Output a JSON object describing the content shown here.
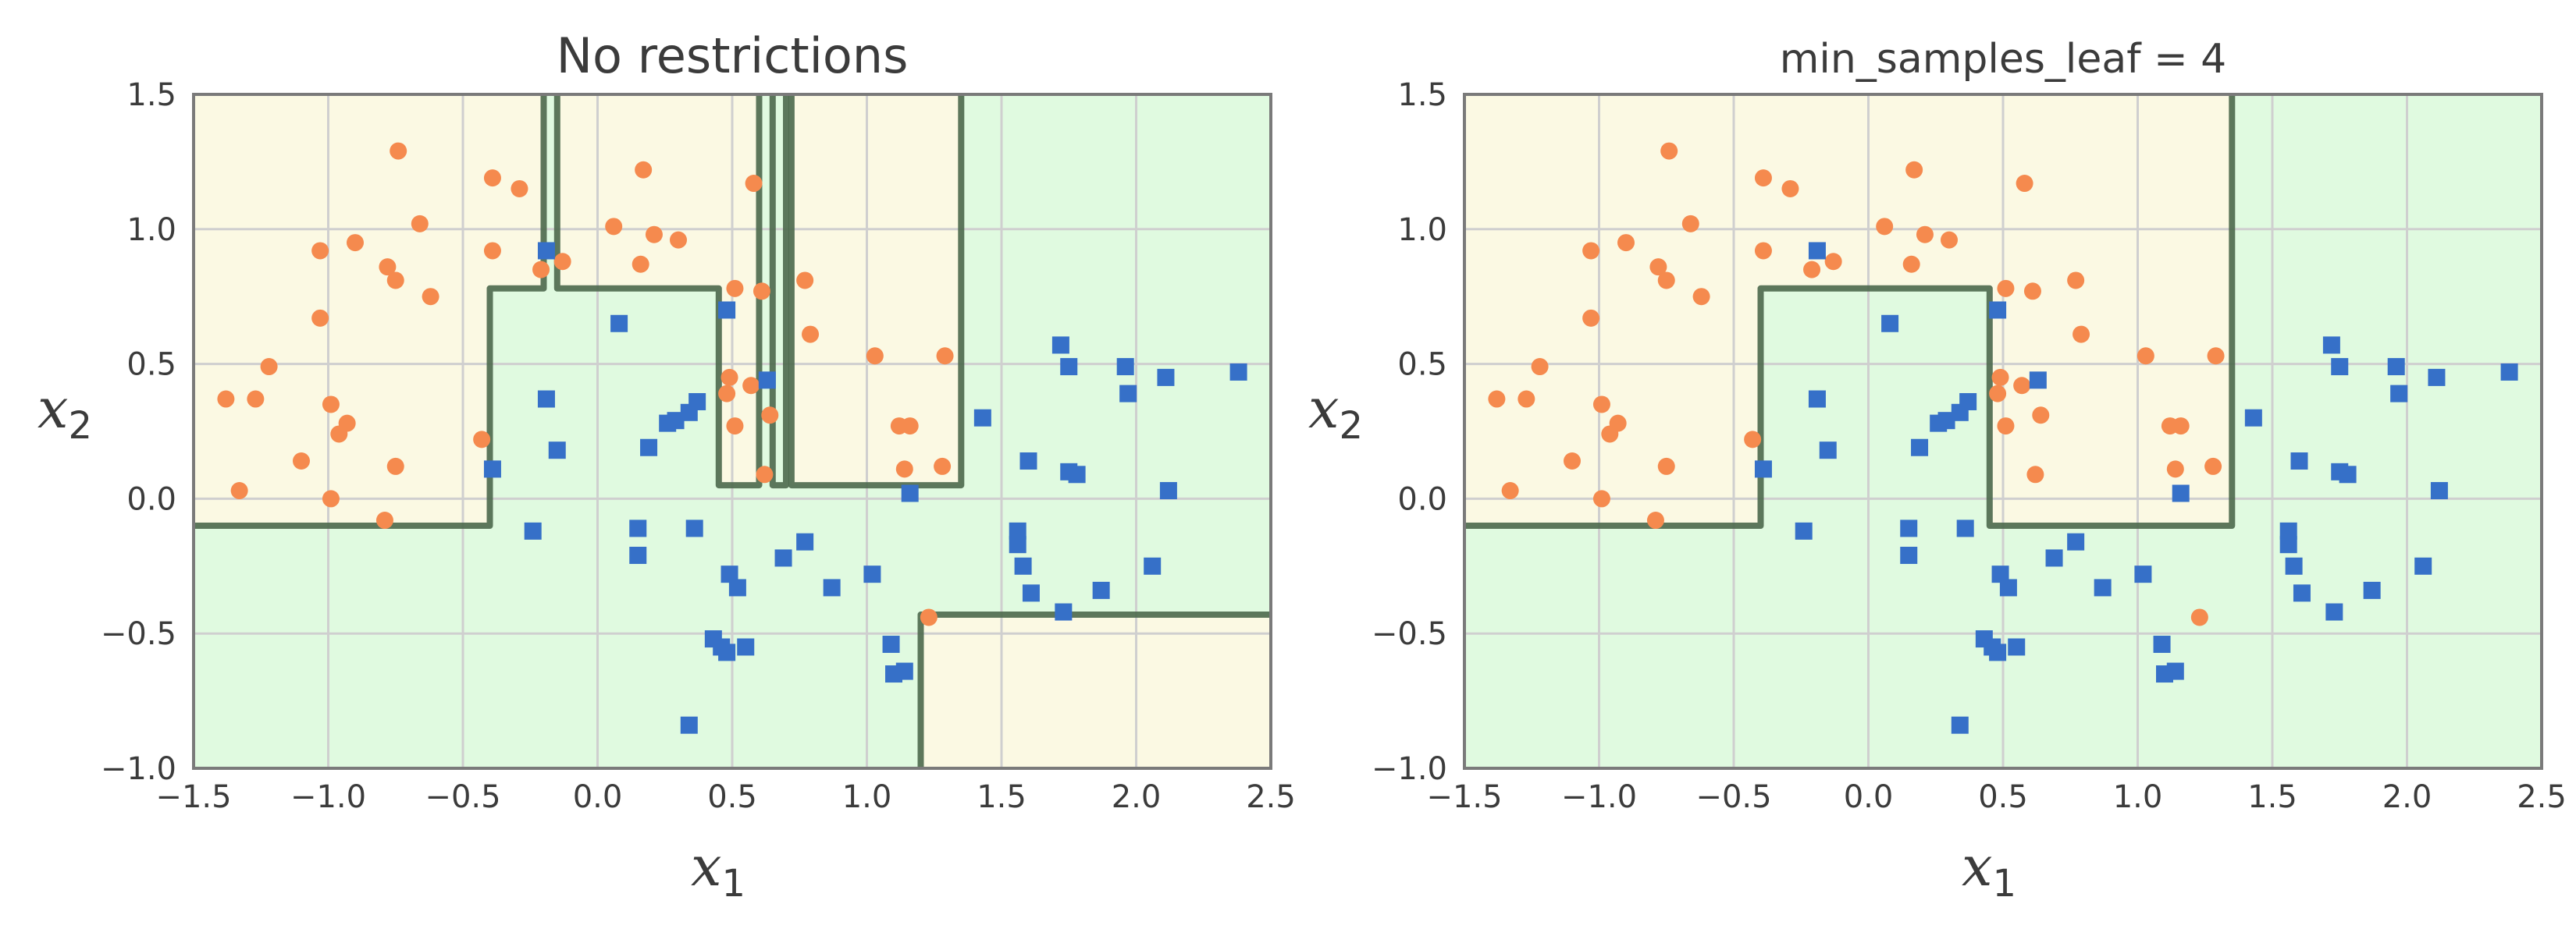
{
  "colors": {
    "class0_region": "#fbf9e3",
    "class1_region": "#e0fae0",
    "class0_marker": "#f58a4e",
    "class1_marker": "#3670c8",
    "boundary": "#4f6b4f",
    "grid": "#cfcfcf",
    "frame": "#7a7a7a",
    "text": "#3b3b3b"
  },
  "chart_data": [
    {
      "type": "scatter",
      "title": "No restrictions",
      "xlabel": "x",
      "xlabel_sub": "1",
      "ylabel": "x",
      "ylabel_sub": "2",
      "xlim": [
        -1.5,
        2.5
      ],
      "ylim": [
        -1.0,
        1.5
      ],
      "xticks": [
        "−1.5",
        "−1.0",
        "−0.5",
        "0.0",
        "0.5",
        "1.0",
        "1.5",
        "2.0",
        "2.5"
      ],
      "yticks": [
        "−1.0",
        "−0.5",
        "0.0",
        "0.5",
        "1.0",
        "1.5"
      ],
      "grid": true,
      "marker_class0": "circle",
      "marker_class1": "square",
      "class0_regions": [
        [
          [
            -1.5,
            -0.1
          ],
          [
            -0.4,
            -0.1
          ],
          [
            -0.4,
            0.78
          ],
          [
            -0.2,
            0.78
          ],
          [
            -0.2,
            1.5
          ],
          [
            -1.5,
            1.5
          ]
        ],
        [
          [
            -0.15,
            0.78
          ],
          [
            0.45,
            0.78
          ],
          [
            0.45,
            0.05
          ],
          [
            0.6,
            0.05
          ],
          [
            0.6,
            1.5
          ],
          [
            -0.15,
            1.5
          ]
        ],
        [
          [
            0.72,
            0.05
          ],
          [
            1.35,
            0.05
          ],
          [
            1.35,
            1.5
          ],
          [
            0.72,
            1.5
          ]
        ],
        [
          [
            1.2,
            -1.0
          ],
          [
            1.2,
            -0.43
          ],
          [
            2.5,
            -0.43
          ],
          [
            2.5,
            -1.0
          ]
        ]
      ],
      "boundaries": [
        [
          [
            -1.5,
            -0.1
          ],
          [
            -0.4,
            -0.1
          ],
          [
            -0.4,
            0.78
          ],
          [
            -0.2,
            0.78
          ],
          [
            -0.2,
            1.5
          ]
        ],
        [
          [
            -0.15,
            1.5
          ],
          [
            -0.15,
            0.78
          ],
          [
            0.45,
            0.78
          ],
          [
            0.45,
            0.05
          ],
          [
            0.6,
            0.05
          ],
          [
            0.6,
            1.5
          ]
        ],
        [
          [
            0.65,
            1.5
          ],
          [
            0.65,
            0.05
          ],
          [
            0.7,
            0.05
          ],
          [
            0.7,
            1.5
          ]
        ],
        [
          [
            0.72,
            1.5
          ],
          [
            0.72,
            0.05
          ],
          [
            1.35,
            0.05
          ],
          [
            1.35,
            1.5
          ]
        ],
        [
          [
            1.2,
            -1.0
          ],
          [
            1.2,
            -0.43
          ],
          [
            2.5,
            -0.43
          ]
        ]
      ],
      "series": [
        {
          "class": 0,
          "points": [
            [
              -1.38,
              0.37
            ],
            [
              -1.33,
              0.03
            ],
            [
              -1.27,
              0.37
            ],
            [
              -1.22,
              0.49
            ],
            [
              -1.1,
              0.14
            ],
            [
              -1.03,
              0.67
            ],
            [
              -1.03,
              0.92
            ],
            [
              -0.99,
              0.35
            ],
            [
              -0.99,
              0.0
            ],
            [
              -0.96,
              0.24
            ],
            [
              -0.93,
              0.28
            ],
            [
              -0.9,
              0.95
            ],
            [
              -0.79,
              -0.08
            ],
            [
              -0.78,
              0.86
            ],
            [
              -0.75,
              0.81
            ],
            [
              -0.75,
              0.12
            ],
            [
              -0.74,
              1.29
            ],
            [
              -0.66,
              1.02
            ],
            [
              -0.62,
              0.75
            ],
            [
              -0.43,
              0.22
            ],
            [
              -0.39,
              1.19
            ],
            [
              -0.39,
              0.92
            ],
            [
              -0.29,
              1.15
            ],
            [
              -0.21,
              0.85
            ],
            [
              -0.13,
              0.88
            ],
            [
              0.06,
              1.01
            ],
            [
              0.16,
              0.87
            ],
            [
              0.17,
              1.22
            ],
            [
              0.21,
              0.98
            ],
            [
              0.3,
              0.96
            ],
            [
              0.48,
              0.39
            ],
            [
              0.49,
              0.45
            ],
            [
              0.51,
              0.78
            ],
            [
              0.51,
              0.27
            ],
            [
              0.57,
              0.42
            ],
            [
              0.58,
              1.17
            ],
            [
              0.61,
              0.77
            ],
            [
              0.62,
              0.09
            ],
            [
              0.64,
              0.31
            ],
            [
              0.77,
              0.81
            ],
            [
              0.79,
              0.61
            ],
            [
              1.03,
              0.53
            ],
            [
              1.12,
              0.27
            ],
            [
              1.14,
              0.11
            ],
            [
              1.16,
              0.27
            ],
            [
              1.23,
              -0.44
            ],
            [
              1.29,
              0.53
            ],
            [
              1.28,
              0.12
            ]
          ]
        },
        {
          "class": 1,
          "points": [
            [
              -0.39,
              0.11
            ],
            [
              -0.24,
              -0.12
            ],
            [
              -0.19,
              0.92
            ],
            [
              -0.19,
              0.37
            ],
            [
              -0.15,
              0.18
            ],
            [
              0.08,
              0.65
            ],
            [
              0.15,
              -0.11
            ],
            [
              0.15,
              -0.21
            ],
            [
              0.19,
              0.19
            ],
            [
              0.26,
              0.28
            ],
            [
              0.29,
              0.29
            ],
            [
              0.34,
              0.32
            ],
            [
              0.37,
              0.36
            ],
            [
              0.36,
              -0.11
            ],
            [
              0.34,
              -0.84
            ],
            [
              0.43,
              -0.52
            ],
            [
              0.46,
              -0.55
            ],
            [
              0.48,
              -0.57
            ],
            [
              0.48,
              0.7
            ],
            [
              0.49,
              -0.28
            ],
            [
              0.52,
              -0.33
            ],
            [
              0.55,
              -0.55
            ],
            [
              0.63,
              0.44
            ],
            [
              0.69,
              -0.22
            ],
            [
              0.77,
              -0.16
            ],
            [
              0.87,
              -0.33
            ],
            [
              1.02,
              -0.28
            ],
            [
              1.09,
              -0.54
            ],
            [
              1.1,
              -0.65
            ],
            [
              1.14,
              -0.64
            ],
            [
              1.16,
              0.02
            ],
            [
              1.43,
              0.3
            ],
            [
              1.56,
              -0.12
            ],
            [
              1.56,
              -0.17
            ],
            [
              1.58,
              -0.25
            ],
            [
              1.61,
              -0.35
            ],
            [
              1.6,
              0.14
            ],
            [
              1.72,
              0.57
            ],
            [
              1.75,
              0.49
            ],
            [
              1.75,
              0.1
            ],
            [
              1.78,
              0.09
            ],
            [
              1.73,
              -0.42
            ],
            [
              1.87,
              -0.34
            ],
            [
              1.96,
              0.49
            ],
            [
              1.97,
              0.39
            ],
            [
              2.06,
              -0.25
            ],
            [
              2.11,
              0.45
            ],
            [
              2.12,
              0.03
            ],
            [
              2.38,
              0.47
            ]
          ]
        }
      ]
    },
    {
      "type": "scatter",
      "title": "min_samples_leaf = 4",
      "xlabel": "x",
      "xlabel_sub": "1",
      "ylabel": "x",
      "ylabel_sub": "2",
      "xlim": [
        -1.5,
        2.5
      ],
      "ylim": [
        -1.0,
        1.5
      ],
      "xticks": [
        "−1.5",
        "−1.0",
        "−0.5",
        "0.0",
        "0.5",
        "1.0",
        "1.5",
        "2.0",
        "2.5"
      ],
      "yticks": [
        "−1.0",
        "−0.5",
        "0.0",
        "0.5",
        "1.0",
        "1.5"
      ],
      "grid": true,
      "marker_class0": "circle",
      "marker_class1": "square",
      "class0_regions": [
        [
          [
            -1.5,
            -0.1
          ],
          [
            -0.4,
            -0.1
          ],
          [
            -0.4,
            0.78
          ],
          [
            0.45,
            0.78
          ],
          [
            0.45,
            -0.1
          ],
          [
            1.35,
            -0.1
          ],
          [
            1.35,
            1.5
          ],
          [
            -1.5,
            1.5
          ]
        ]
      ],
      "boundaries": [
        [
          [
            -1.5,
            -0.1
          ],
          [
            -0.4,
            -0.1
          ],
          [
            -0.4,
            0.78
          ],
          [
            0.45,
            0.78
          ],
          [
            0.45,
            -0.1
          ],
          [
            1.35,
            -0.1
          ],
          [
            1.35,
            1.5
          ]
        ]
      ],
      "series": [
        {
          "class": 0,
          "points": [
            [
              -1.38,
              0.37
            ],
            [
              -1.33,
              0.03
            ],
            [
              -1.27,
              0.37
            ],
            [
              -1.22,
              0.49
            ],
            [
              -1.1,
              0.14
            ],
            [
              -1.03,
              0.67
            ],
            [
              -1.03,
              0.92
            ],
            [
              -0.99,
              0.35
            ],
            [
              -0.99,
              0.0
            ],
            [
              -0.96,
              0.24
            ],
            [
              -0.93,
              0.28
            ],
            [
              -0.9,
              0.95
            ],
            [
              -0.79,
              -0.08
            ],
            [
              -0.78,
              0.86
            ],
            [
              -0.75,
              0.81
            ],
            [
              -0.75,
              0.12
            ],
            [
              -0.74,
              1.29
            ],
            [
              -0.66,
              1.02
            ],
            [
              -0.62,
              0.75
            ],
            [
              -0.43,
              0.22
            ],
            [
              -0.39,
              1.19
            ],
            [
              -0.39,
              0.92
            ],
            [
              -0.29,
              1.15
            ],
            [
              -0.21,
              0.85
            ],
            [
              -0.13,
              0.88
            ],
            [
              0.06,
              1.01
            ],
            [
              0.16,
              0.87
            ],
            [
              0.17,
              1.22
            ],
            [
              0.21,
              0.98
            ],
            [
              0.3,
              0.96
            ],
            [
              0.48,
              0.39
            ],
            [
              0.49,
              0.45
            ],
            [
              0.51,
              0.78
            ],
            [
              0.51,
              0.27
            ],
            [
              0.57,
              0.42
            ],
            [
              0.58,
              1.17
            ],
            [
              0.61,
              0.77
            ],
            [
              0.62,
              0.09
            ],
            [
              0.64,
              0.31
            ],
            [
              0.77,
              0.81
            ],
            [
              0.79,
              0.61
            ],
            [
              1.03,
              0.53
            ],
            [
              1.12,
              0.27
            ],
            [
              1.14,
              0.11
            ],
            [
              1.16,
              0.27
            ],
            [
              1.23,
              -0.44
            ],
            [
              1.29,
              0.53
            ],
            [
              1.28,
              0.12
            ]
          ]
        },
        {
          "class": 1,
          "points": [
            [
              -0.39,
              0.11
            ],
            [
              -0.24,
              -0.12
            ],
            [
              -0.19,
              0.92
            ],
            [
              -0.19,
              0.37
            ],
            [
              -0.15,
              0.18
            ],
            [
              0.08,
              0.65
            ],
            [
              0.15,
              -0.11
            ],
            [
              0.15,
              -0.21
            ],
            [
              0.19,
              0.19
            ],
            [
              0.26,
              0.28
            ],
            [
              0.29,
              0.29
            ],
            [
              0.34,
              0.32
            ],
            [
              0.37,
              0.36
            ],
            [
              0.36,
              -0.11
            ],
            [
              0.34,
              -0.84
            ],
            [
              0.43,
              -0.52
            ],
            [
              0.46,
              -0.55
            ],
            [
              0.48,
              -0.57
            ],
            [
              0.48,
              0.7
            ],
            [
              0.49,
              -0.28
            ],
            [
              0.52,
              -0.33
            ],
            [
              0.55,
              -0.55
            ],
            [
              0.63,
              0.44
            ],
            [
              0.69,
              -0.22
            ],
            [
              0.77,
              -0.16
            ],
            [
              0.87,
              -0.33
            ],
            [
              1.02,
              -0.28
            ],
            [
              1.09,
              -0.54
            ],
            [
              1.1,
              -0.65
            ],
            [
              1.14,
              -0.64
            ],
            [
              1.16,
              0.02
            ],
            [
              1.43,
              0.3
            ],
            [
              1.56,
              -0.12
            ],
            [
              1.56,
              -0.17
            ],
            [
              1.58,
              -0.25
            ],
            [
              1.61,
              -0.35
            ],
            [
              1.6,
              0.14
            ],
            [
              1.72,
              0.57
            ],
            [
              1.75,
              0.49
            ],
            [
              1.75,
              0.1
            ],
            [
              1.78,
              0.09
            ],
            [
              1.73,
              -0.42
            ],
            [
              1.87,
              -0.34
            ],
            [
              1.96,
              0.49
            ],
            [
              1.97,
              0.39
            ],
            [
              2.06,
              -0.25
            ],
            [
              2.11,
              0.45
            ],
            [
              2.12,
              0.03
            ],
            [
              2.38,
              0.47
            ]
          ]
        }
      ]
    }
  ]
}
